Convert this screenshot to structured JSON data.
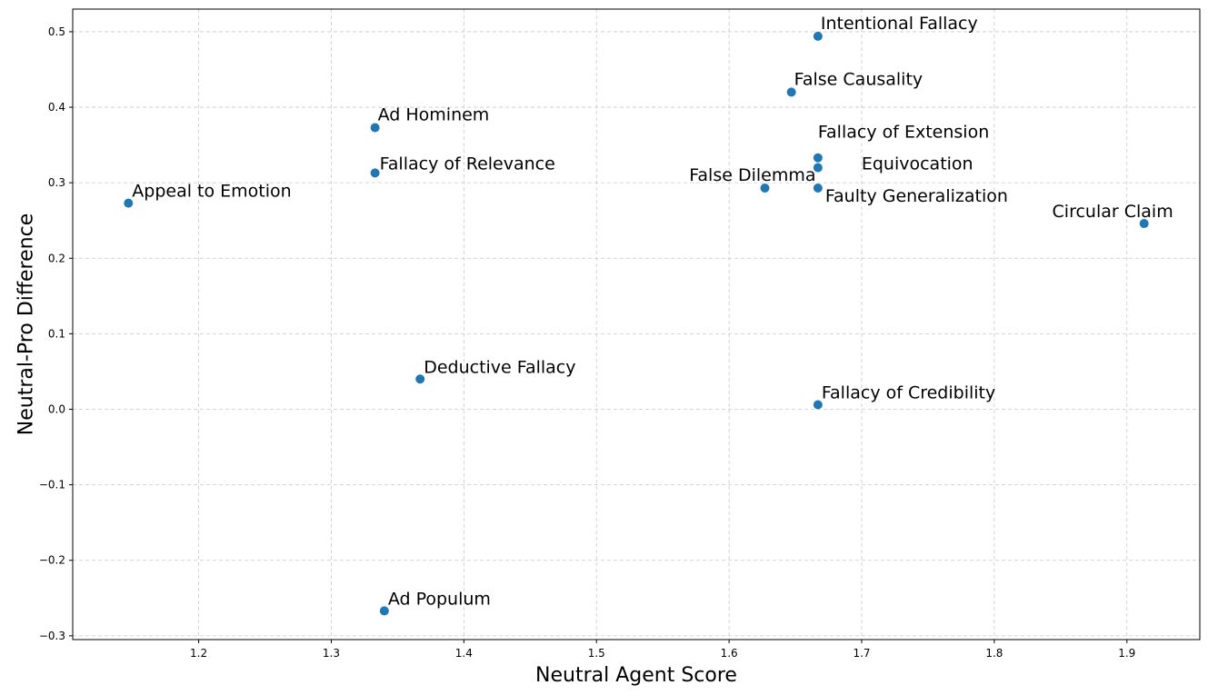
{
  "chart_data": {
    "type": "scatter",
    "title": "",
    "xlabel": "Neutral Agent Score",
    "ylabel": "Neutral-Pro Difference",
    "xlim": [
      1.105,
      1.955
    ],
    "ylim": [
      -0.305,
      0.53
    ],
    "xticks": [
      1.2,
      1.3,
      1.4,
      1.5,
      1.6,
      1.7,
      1.8,
      1.9
    ],
    "xtick_labels": [
      "1.2",
      "1.3",
      "1.4",
      "1.5",
      "1.6",
      "1.7",
      "1.8",
      "1.9"
    ],
    "yticks": [
      -0.3,
      -0.2,
      -0.1,
      0.0,
      0.1,
      0.2,
      0.3,
      0.4,
      0.5
    ],
    "ytick_labels": [
      "−0.3",
      "−0.2",
      "−0.1",
      "0.0",
      "0.1",
      "0.2",
      "0.3",
      "0.4",
      "0.5"
    ],
    "grid": true,
    "marker_color": "#1f77b4",
    "points": [
      {
        "label": "Intentional Fallacy",
        "x": 1.667,
        "y": 0.494
      },
      {
        "label": "False Causality",
        "x": 1.647,
        "y": 0.42
      },
      {
        "label": "Ad Hominem",
        "x": 1.333,
        "y": 0.373
      },
      {
        "label": "Fallacy of Extension",
        "x": 1.667,
        "y": 0.333
      },
      {
        "label": "Equivocation",
        "x": 1.667,
        "y": 0.32
      },
      {
        "label": "Fallacy of Relevance",
        "x": 1.333,
        "y": 0.313
      },
      {
        "label": "False Dilemma",
        "x": 1.627,
        "y": 0.293
      },
      {
        "label": "Faulty Generalization",
        "x": 1.667,
        "y": 0.293
      },
      {
        "label": "Appeal to Emotion",
        "x": 1.147,
        "y": 0.273
      },
      {
        "label": "Circular Claim",
        "x": 1.913,
        "y": 0.246
      },
      {
        "label": "Deductive Fallacy",
        "x": 1.367,
        "y": 0.04
      },
      {
        "label": "Fallacy of Credibility",
        "x": 1.667,
        "y": 0.006
      },
      {
        "label": "Ad Populum",
        "x": 1.34,
        "y": -0.267
      }
    ]
  }
}
